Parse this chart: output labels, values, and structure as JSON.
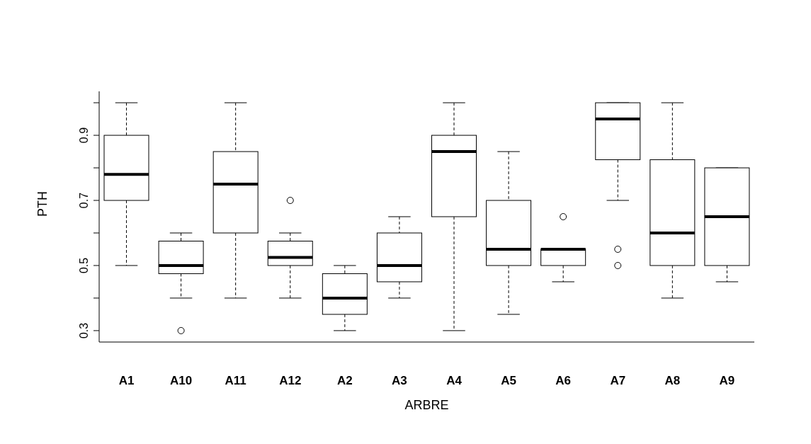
{
  "chart_data": {
    "type": "box",
    "xlabel": "ARBRE",
    "ylabel": "PTH",
    "color": "#000000",
    "categories": [
      "A1",
      "A10",
      "A11",
      "A12",
      "A2",
      "A3",
      "A4",
      "A5",
      "A6",
      "A7",
      "A8",
      "A9"
    ],
    "boxes": [
      {
        "low": 0.5,
        "q1": 0.7,
        "median": 0.78,
        "q3": 0.9,
        "high": 1.0
      },
      {
        "low": 0.4,
        "q1": 0.475,
        "median": 0.5,
        "q3": 0.575,
        "high": 0.6,
        "outliers": [
          0.3
        ]
      },
      {
        "low": 0.4,
        "q1": 0.6,
        "median": 0.75,
        "q3": 0.85,
        "high": 1.0
      },
      {
        "low": 0.4,
        "q1": 0.5,
        "median": 0.525,
        "q3": 0.575,
        "high": 0.6,
        "outliers": [
          0.7
        ]
      },
      {
        "low": 0.3,
        "q1": 0.35,
        "median": 0.4,
        "q3": 0.475,
        "high": 0.5
      },
      {
        "low": 0.4,
        "q1": 0.45,
        "median": 0.5,
        "q3": 0.6,
        "high": 0.65
      },
      {
        "low": 0.3,
        "q1": 0.65,
        "median": 0.85,
        "q3": 0.9,
        "high": 1.0
      },
      {
        "low": 0.35,
        "q1": 0.5,
        "median": 0.55,
        "q3": 0.7,
        "high": 0.85
      },
      {
        "low": 0.45,
        "q1": 0.5,
        "median": 0.55,
        "q3": 0.55,
        "high": 0.55,
        "outliers": [
          0.65
        ]
      },
      {
        "low": 0.7,
        "q1": 0.825,
        "median": 0.95,
        "q3": 1.0,
        "high": 1.0,
        "outliers": [
          0.55,
          0.5
        ]
      },
      {
        "low": 0.4,
        "q1": 0.5,
        "median": 0.6,
        "q3": 0.825,
        "high": 1.0
      },
      {
        "low": 0.45,
        "q1": 0.5,
        "median": 0.65,
        "q3": 0.8,
        "high": 0.8
      }
    ],
    "ylim": [
      0.265,
      1.035
    ],
    "yticks": [
      0.3,
      {
        "value": 0.4,
        "label": null
      },
      0.5,
      {
        "value": 0.6,
        "label": null
      },
      0.7,
      {
        "value": 0.8,
        "label": null
      },
      0.9,
      {
        "value": 1.0,
        "label": null
      }
    ]
  }
}
